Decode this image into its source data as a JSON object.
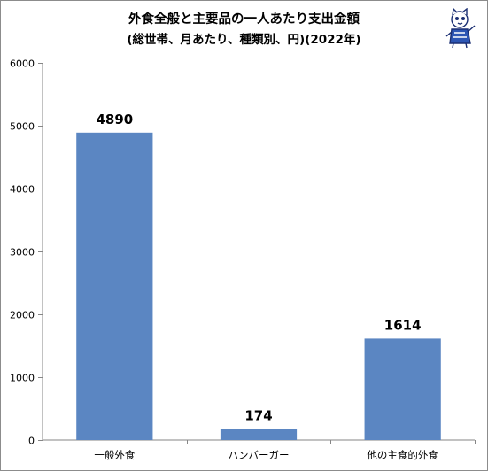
{
  "chart_data": {
    "type": "bar",
    "title": "外食全般と主要品の一人あたり支出金額",
    "subtitle": "(総世帯、月あたり、種類別、円)(2022年)",
    "categories": [
      "一般外食",
      "ハンバーガー",
      "他の主食的外食"
    ],
    "values": [
      4890,
      174,
      1614
    ],
    "data_labels": [
      "4890",
      "174",
      "1614"
    ],
    "y_ticks": [
      "0",
      "1000",
      "2000",
      "3000",
      "4000",
      "5000",
      "6000"
    ],
    "ylim": [
      0,
      6000
    ],
    "xlabel": "",
    "ylabel": "",
    "grid": false,
    "legend": "none",
    "bar_color": "#5b86c2",
    "axis_color": "#868686"
  },
  "mascot_icon": "cat-mascot-icon"
}
